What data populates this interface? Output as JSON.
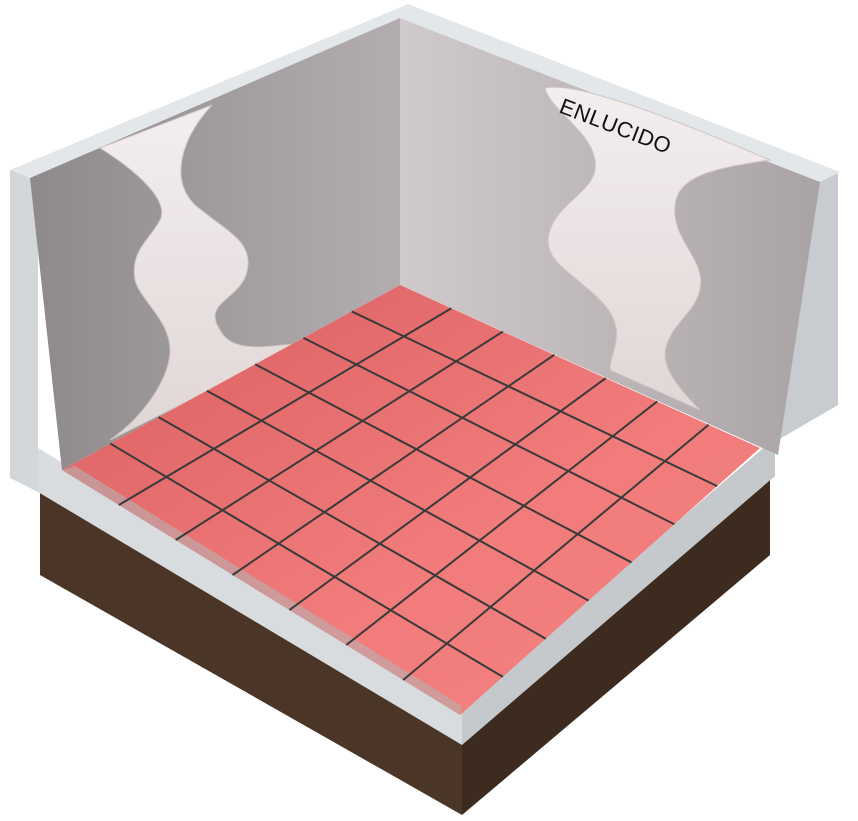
{
  "diagram": {
    "label": "ENLUCIDO",
    "floor_grid": {
      "columns": 7,
      "rows": 7
    },
    "colors": {
      "tile": "#f07a7a",
      "grout": "#3a3a3a",
      "plaster": "#ece4e4",
      "wall_back": "#b9b2b4",
      "wall_left": "#a59fa1",
      "wall_rim": "#e1e4e6",
      "slab_side": "#d4d7da",
      "soil": "#4a3526"
    }
  }
}
